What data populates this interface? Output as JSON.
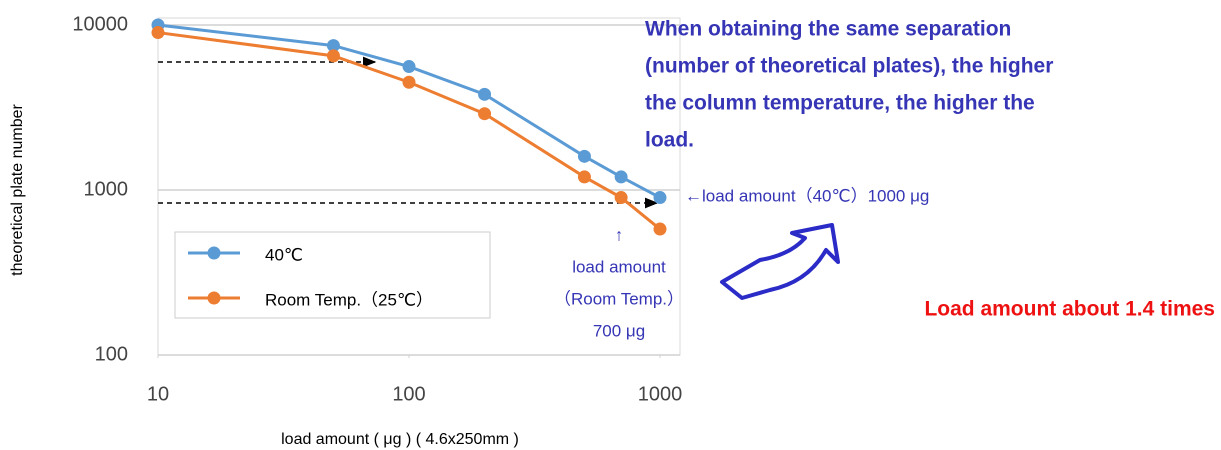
{
  "chart_data": {
    "type": "line",
    "x_label": "load  amount ( μg ) ( 4.6x250mm )",
    "y_label": "theoretical plate number",
    "x_log": true,
    "y_log": true,
    "xlim": [
      10,
      1000
    ],
    "ylim": [
      100,
      10000
    ],
    "xticks": [
      10,
      100,
      1000
    ],
    "yticks": [
      100,
      1000,
      10000
    ],
    "grid": true,
    "x": [
      10,
      50,
      100,
      200,
      500,
      700,
      1000
    ],
    "series": [
      {
        "name": "40℃",
        "color": "#5b9bd5",
        "values": [
          10000,
          7500,
          5600,
          3800,
          1600,
          1200,
          900
        ]
      },
      {
        "name": "Room Temp.（25℃）",
        "color": "#ed7d31",
        "values": [
          9000,
          6500,
          4500,
          2900,
          1200,
          900,
          580
        ]
      }
    ],
    "annotations": {
      "note": [
        "When obtaining the same separation",
        "(number of theoretical plates), the higher",
        "the column temperature, the higher the",
        "load."
      ],
      "load_40": "←load amount（40℃）1000 μg",
      "load_rt": [
        "↑",
        "load amount",
        "（Room Temp.）",
        "700 μg"
      ],
      "ratio": "Load amount about 1.4 times"
    }
  }
}
